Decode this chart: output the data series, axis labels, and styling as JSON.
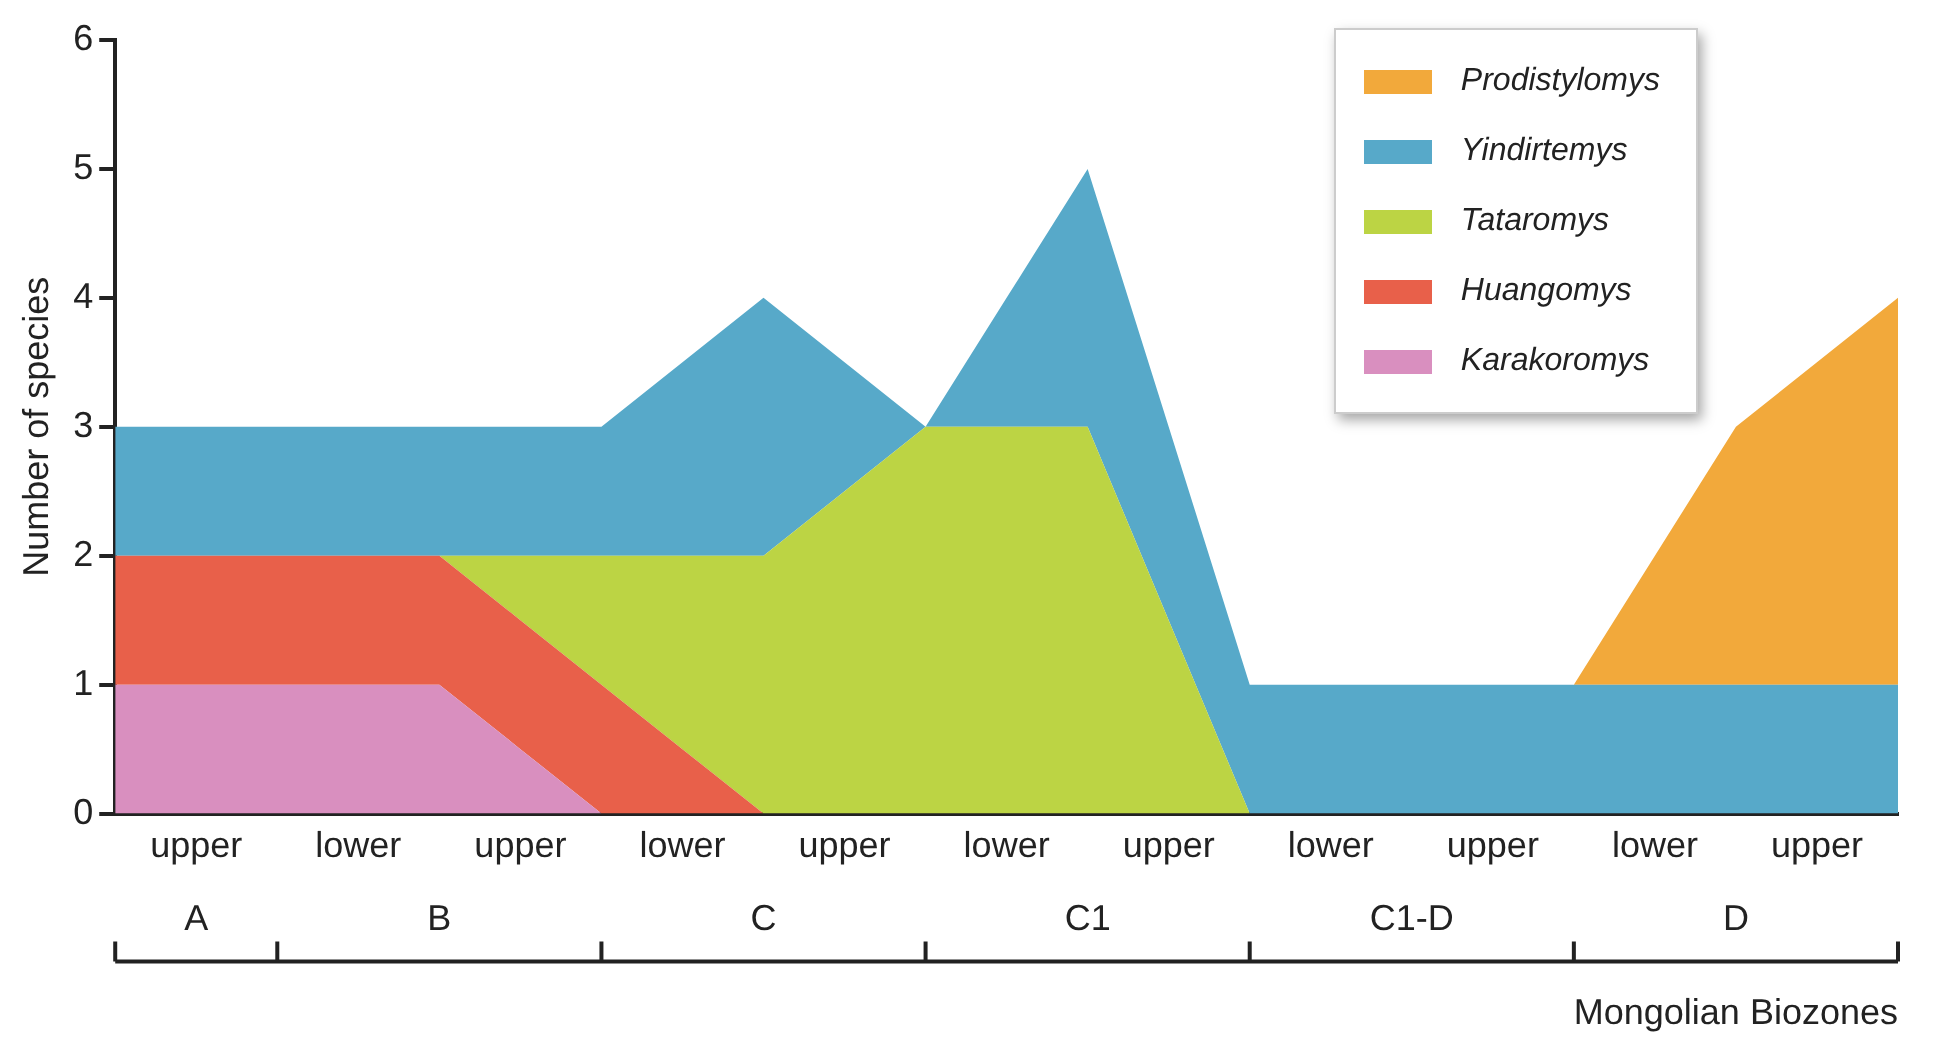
{
  "chart_data": {
    "type": "area",
    "ylabel": "Number of species",
    "xlabel": "Mongolian Biozones",
    "categories": [
      null,
      "upper",
      null,
      "lower",
      null,
      "upper",
      null,
      "lower",
      null,
      "upper",
      null,
      "lower",
      null,
      "upper",
      null,
      "lower",
      null,
      "upper",
      null,
      "lower",
      null,
      "upper",
      null
    ],
    "annotations": [
      "A",
      "B",
      "C",
      "C1",
      "C1-D",
      "D"
    ],
    "ylim": [
      0,
      6
    ],
    "yticks": [
      0,
      1,
      2,
      3,
      4,
      5,
      6
    ],
    "stacked": true,
    "grid": false,
    "legend": "top right",
    "marker": "none",
    "series": [
      {
        "name": "Karakoromys",
        "color": "#d98fbf",
        "values": [
          1,
          1,
          1,
          1,
          1,
          0.5,
          0,
          0,
          0,
          0,
          0,
          0,
          0,
          0,
          0,
          0,
          0,
          0,
          0,
          0,
          0,
          0,
          0
        ]
      },
      {
        "name": "Huangomys",
        "color": "#e8604a",
        "values": [
          1,
          1,
          1,
          1,
          1,
          1,
          1,
          0.5,
          0,
          0,
          0,
          0,
          0,
          0,
          0,
          0,
          0,
          0,
          0,
          0,
          0,
          0,
          0
        ]
      },
      {
        "name": "Tataromys",
        "color": "#bcd444",
        "values": [
          0,
          0,
          0,
          0,
          0,
          0.5,
          1,
          1.5,
          2,
          2.5,
          3,
          3,
          3,
          1.5,
          0,
          0,
          0,
          0,
          0,
          0,
          0,
          0,
          0
        ]
      },
      {
        "name": "Yindirtemys",
        "color": "#57a9c9",
        "values": [
          1,
          1,
          1,
          1,
          1,
          1,
          1,
          1.5,
          2,
          1,
          0,
          1,
          2,
          1.5,
          1,
          1,
          1,
          1,
          1,
          1,
          1,
          1,
          1
        ]
      },
      {
        "name": "Prodistylomys",
        "color": "#f2a93b",
        "values": [
          null,
          null,
          null,
          null,
          null,
          null,
          null,
          null,
          null,
          null,
          null,
          null,
          null,
          null,
          null,
          null,
          null,
          null,
          0,
          1,
          2,
          2.5,
          3
        ]
      }
    ]
  }
}
